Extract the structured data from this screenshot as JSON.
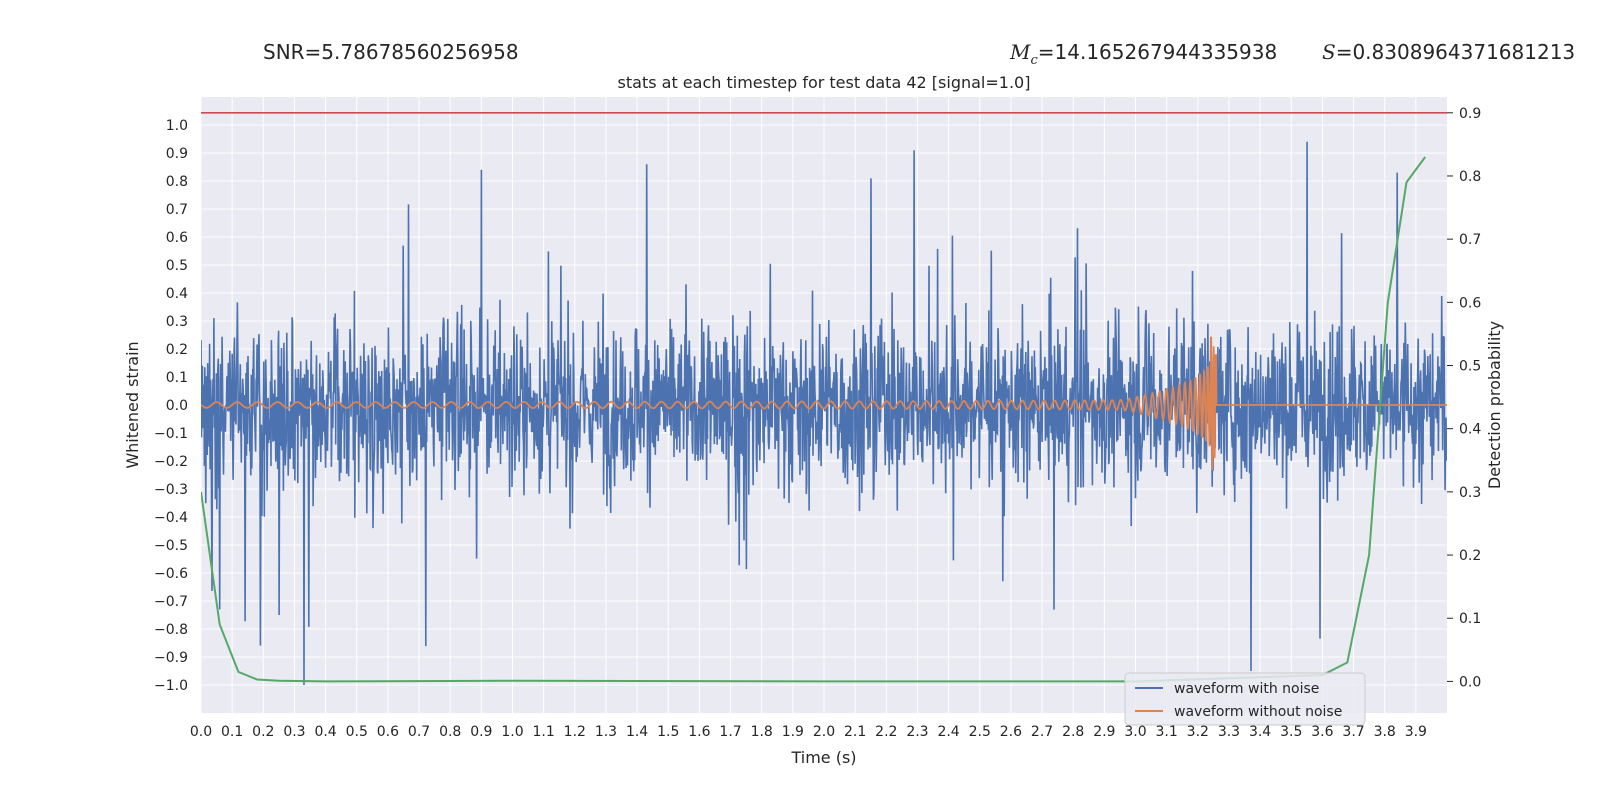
{
  "header": {
    "snr_text": "SNR=5.78678560256958",
    "mc_symbol": "M",
    "mc_subscript": "c",
    "mc_value": "=14.165267944335938",
    "s_symbol": "S",
    "s_value": "=0.8308964371681213"
  },
  "colors": {
    "background": "#eaeaf2",
    "grid": "#ffffff",
    "noisy": "#4c72b0",
    "clean": "#dd8452",
    "probability": "#55a868",
    "threshold": "#c44e52"
  },
  "chart_data": {
    "type": "line",
    "title": "stats at each timestep for test data 42 [signal=1.0]",
    "xlabel": "Time (s)",
    "ylabel": "Whitened strain",
    "ylabel_right": "Detection probability",
    "xlim": [
      0.0,
      4.0
    ],
    "ylim": [
      -1.1,
      1.1
    ],
    "ylim_right": [
      -0.05,
      0.925
    ],
    "x_ticks": [
      "0.0",
      "0.1",
      "0.2",
      "0.3",
      "0.4",
      "0.5",
      "0.6",
      "0.7",
      "0.8",
      "0.9",
      "1.0",
      "1.1",
      "1.2",
      "1.3",
      "1.4",
      "1.5",
      "1.6",
      "1.7",
      "1.8",
      "1.9",
      "2.0",
      "2.1",
      "2.2",
      "2.3",
      "2.4",
      "2.5",
      "2.6",
      "2.7",
      "2.8",
      "2.9",
      "3.0",
      "3.1",
      "3.2",
      "3.3",
      "3.4",
      "3.5",
      "3.6",
      "3.7",
      "3.8",
      "3.9"
    ],
    "y_ticks": [
      "1.0",
      "0.9",
      "0.8",
      "0.7",
      "0.6",
      "0.5",
      "0.4",
      "0.3",
      "0.2",
      "0.1",
      "0.0",
      "−0.1",
      "−0.2",
      "−0.3",
      "−0.4",
      "−0.5",
      "−0.6",
      "−0.7",
      "−0.8",
      "−0.9",
      "−1.0"
    ],
    "y_ticks_right": [
      "0.9",
      "0.8",
      "0.7",
      "0.6",
      "0.5",
      "0.4",
      "0.3",
      "0.2",
      "0.1",
      "0.0"
    ],
    "threshold": 0.9,
    "legend": [
      "waveform with noise",
      "waveform without noise"
    ],
    "legend_position": "lower-right",
    "series": [
      {
        "name": "waveform with noise",
        "kind": "noise",
        "amplitude_typical": 0.5,
        "peak_max": 0.94,
        "peak_min": -1.0,
        "notable_peaks": [
          [
            0.33,
            -1.0
          ],
          [
            1.43,
            0.86
          ],
          [
            0.9,
            0.84
          ],
          [
            3.55,
            0.94
          ],
          [
            3.37,
            -0.95
          ],
          [
            3.84,
            0.83
          ],
          [
            0.06,
            -0.73
          ],
          [
            0.25,
            -0.75
          ]
        ]
      },
      {
        "name": "waveform without noise",
        "kind": "chirp",
        "merger_time": 3.26,
        "peak_amplitude": 0.27,
        "min_amplitude": -0.22,
        "start_amplitude": 0.01
      },
      {
        "name": "detection probability",
        "axis": "right",
        "x": [
          0.0,
          0.06,
          0.12,
          0.18,
          0.25,
          0.4,
          1.0,
          2.0,
          3.0,
          3.6,
          3.68,
          3.75,
          3.81,
          3.87,
          3.93
        ],
        "y": [
          0.3,
          0.09,
          0.015,
          0.003,
          0.001,
          0.0,
          0.001,
          0.0,
          0.0,
          0.01,
          0.03,
          0.2,
          0.6,
          0.79,
          0.83
        ]
      }
    ]
  }
}
